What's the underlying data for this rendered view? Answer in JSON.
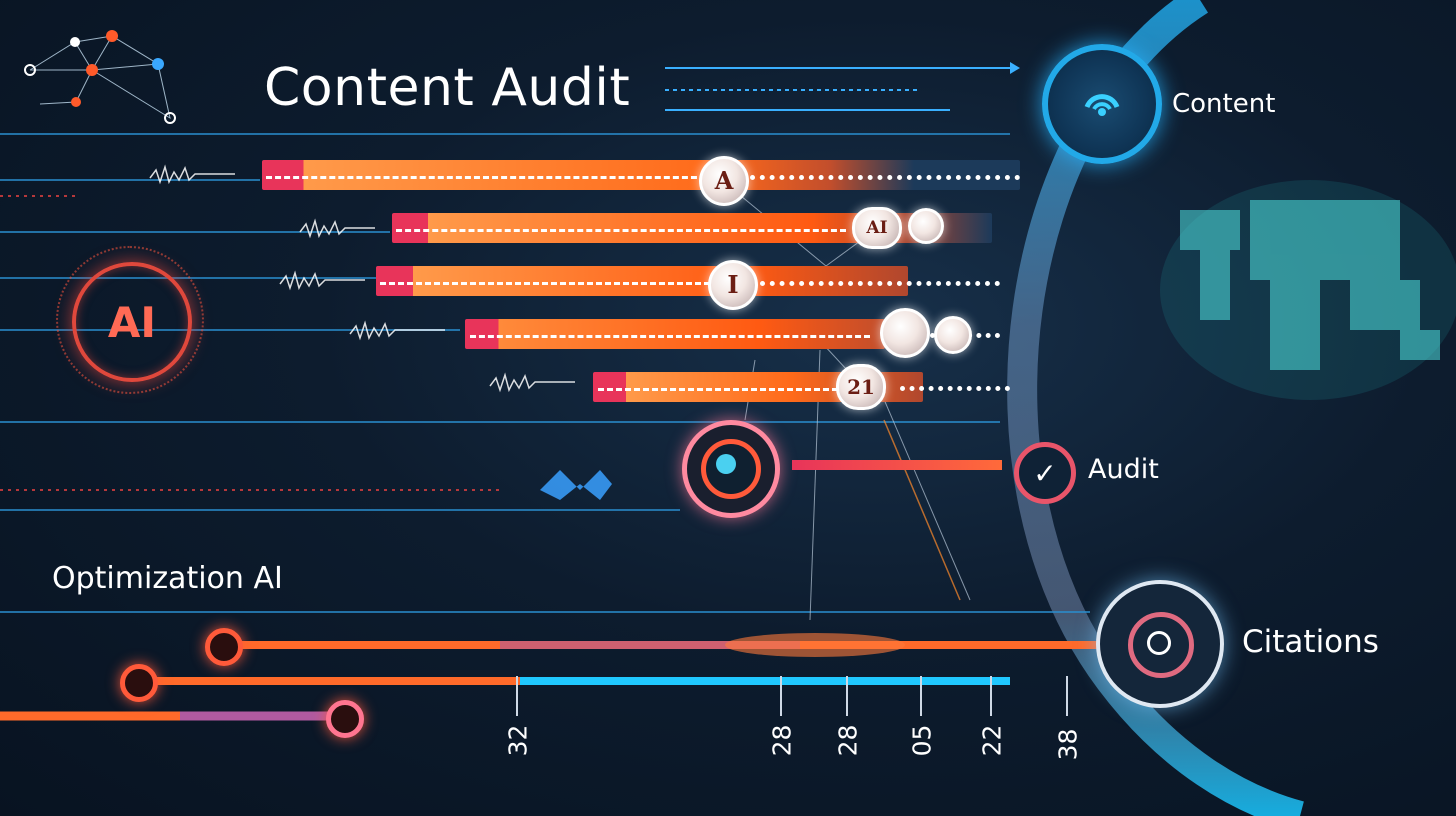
{
  "header": {
    "title": "Content Audit"
  },
  "badges": {
    "ai_badge": "AI"
  },
  "labels": {
    "content": "Content",
    "audit": "Audit",
    "citations": "Citations",
    "optimization": "Optimization AI"
  },
  "nodes": [
    "A",
    "AI",
    "I",
    "21"
  ],
  "axis_ticks": [
    "32",
    "28",
    "28",
    "05",
    "22",
    "38"
  ],
  "colors": {
    "accent_orange": "#ff6a1a",
    "accent_red": "#e8345a",
    "accent_cyan": "#22a9e8",
    "bg": "#0d1c2e"
  },
  "icons": {
    "content": "signal-icon",
    "audit": "check-icon",
    "citations": "target-icon",
    "network": "network-nodes-icon",
    "world": "world-map-icon"
  }
}
